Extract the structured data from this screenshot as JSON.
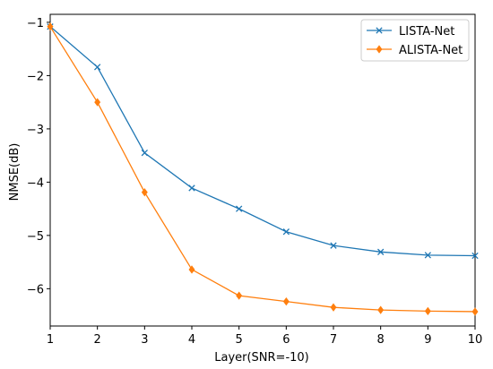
{
  "chart_data": {
    "type": "line",
    "xlabel": "Layer(SNR=-10)",
    "ylabel": "NMSE(dB)",
    "xlim": [
      1,
      10
    ],
    "ylim": [
      -6.7,
      -0.85
    ],
    "xticks": [
      1,
      2,
      3,
      4,
      5,
      6,
      7,
      8,
      9,
      10
    ],
    "yticks": [
      -1,
      -2,
      -3,
      -4,
      -5,
      -6
    ],
    "ytick_labels": [
      "−1",
      "−2",
      "−3",
      "−4",
      "−5",
      "−6"
    ],
    "grid": false,
    "legend_position": "top-right",
    "x": [
      1,
      2,
      3,
      4,
      5,
      6,
      7,
      8,
      9,
      10
    ],
    "series": [
      {
        "name": "LISTA-Net",
        "color": "#1f77b4",
        "marker": "x",
        "values": [
          -1.08,
          -1.84,
          -3.45,
          -4.11,
          -4.5,
          -4.93,
          -5.19,
          -5.31,
          -5.37,
          -5.38
        ]
      },
      {
        "name": "ALISTA-Net",
        "color": "#ff7f0e",
        "marker": "diamond",
        "values": [
          -1.08,
          -2.5,
          -4.19,
          -5.64,
          -6.13,
          -6.24,
          -6.35,
          -6.4,
          -6.42,
          -6.43
        ]
      }
    ]
  }
}
